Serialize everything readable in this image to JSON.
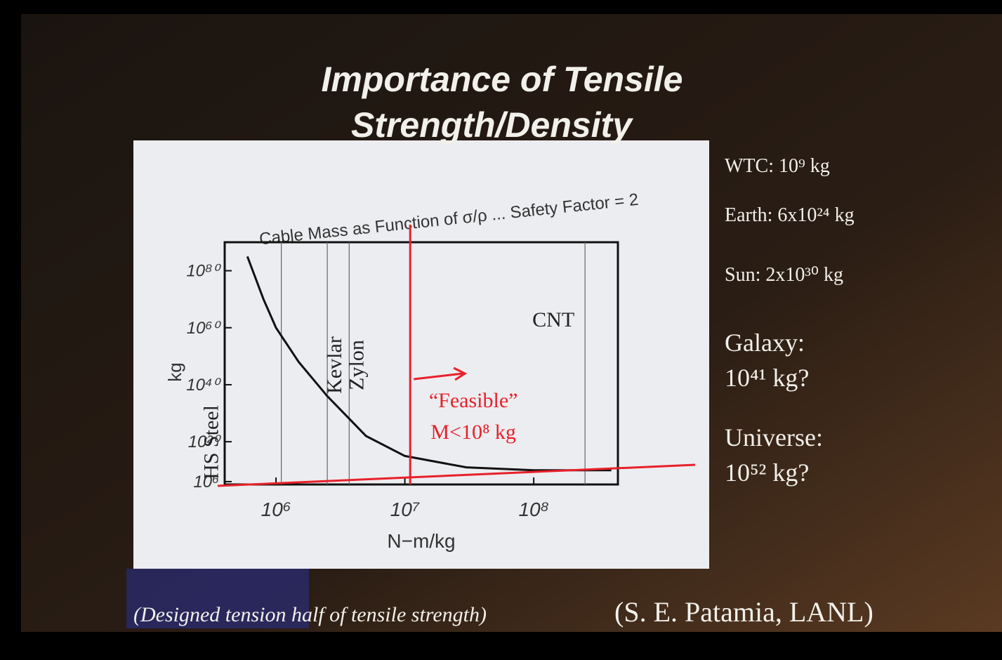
{
  "slide": {
    "title_lines": [
      "Importance of Tensile",
      "Strength/Density"
    ],
    "notes": [
      "WTC: 10⁹ kg",
      "Earth: 6x10²⁴ kg",
      "Sun: 2x10³⁰ kg",
      "Galaxy:",
      "10⁴¹ kg?",
      "Universe:",
      "10⁵² kg?"
    ],
    "footnote": "(Designed tension half of tensile strength)",
    "credit": "(S. E. Patamia, LANL)"
  },
  "chart_data": {
    "type": "line",
    "title": "Cable Mass as Function of σ/ρ ... Safety Factor = 2",
    "x_label": "N−m/kg",
    "y_label": "kg",
    "log_x": true,
    "log_y": true,
    "xlim": [
      400000,
      450000000
    ],
    "ylim": [
      100000,
      1e+90
    ],
    "xticks": [
      {
        "value": 1000000,
        "label": "10⁶"
      },
      {
        "value": 10000000,
        "label": "10⁷"
      },
      {
        "value": 100000000,
        "label": "10⁸"
      }
    ],
    "yticks": [
      {
        "value": 1000000,
        "label": "10⁶"
      },
      {
        "value": 1e+20,
        "label": "10²⁰"
      },
      {
        "value": 1e+40,
        "label": "10⁴⁰"
      },
      {
        "value": 1e+60,
        "label": "10⁶⁰"
      },
      {
        "value": 1e+80,
        "label": "10⁸⁰"
      }
    ],
    "series": [
      {
        "color": "#111111",
        "x": [
          600000,
          800000,
          1000000,
          1500000,
          2500000,
          5000000,
          10000000,
          30000000,
          100000000,
          400000000
        ],
        "values": [
          1e+85,
          1e+70,
          1e+60,
          1e+48,
          1e+36,
          1e+22,
          1000000000000000.0,
          100000000000.0,
          10000000000.0,
          10000000000.0
        ]
      }
    ],
    "materials": [
      {
        "name": "HS Steel",
        "x": 1100000
      },
      {
        "name": "Kevlar",
        "x": 2500000
      },
      {
        "name": "Zylon",
        "x": 3700000
      },
      {
        "name": "CNT",
        "x": 250000000
      }
    ],
    "feasible": {
      "x": 11000000,
      "labels": [
        "“Feasible”",
        "M<10⁸ kg"
      ],
      "color": "#e8202a"
    }
  }
}
